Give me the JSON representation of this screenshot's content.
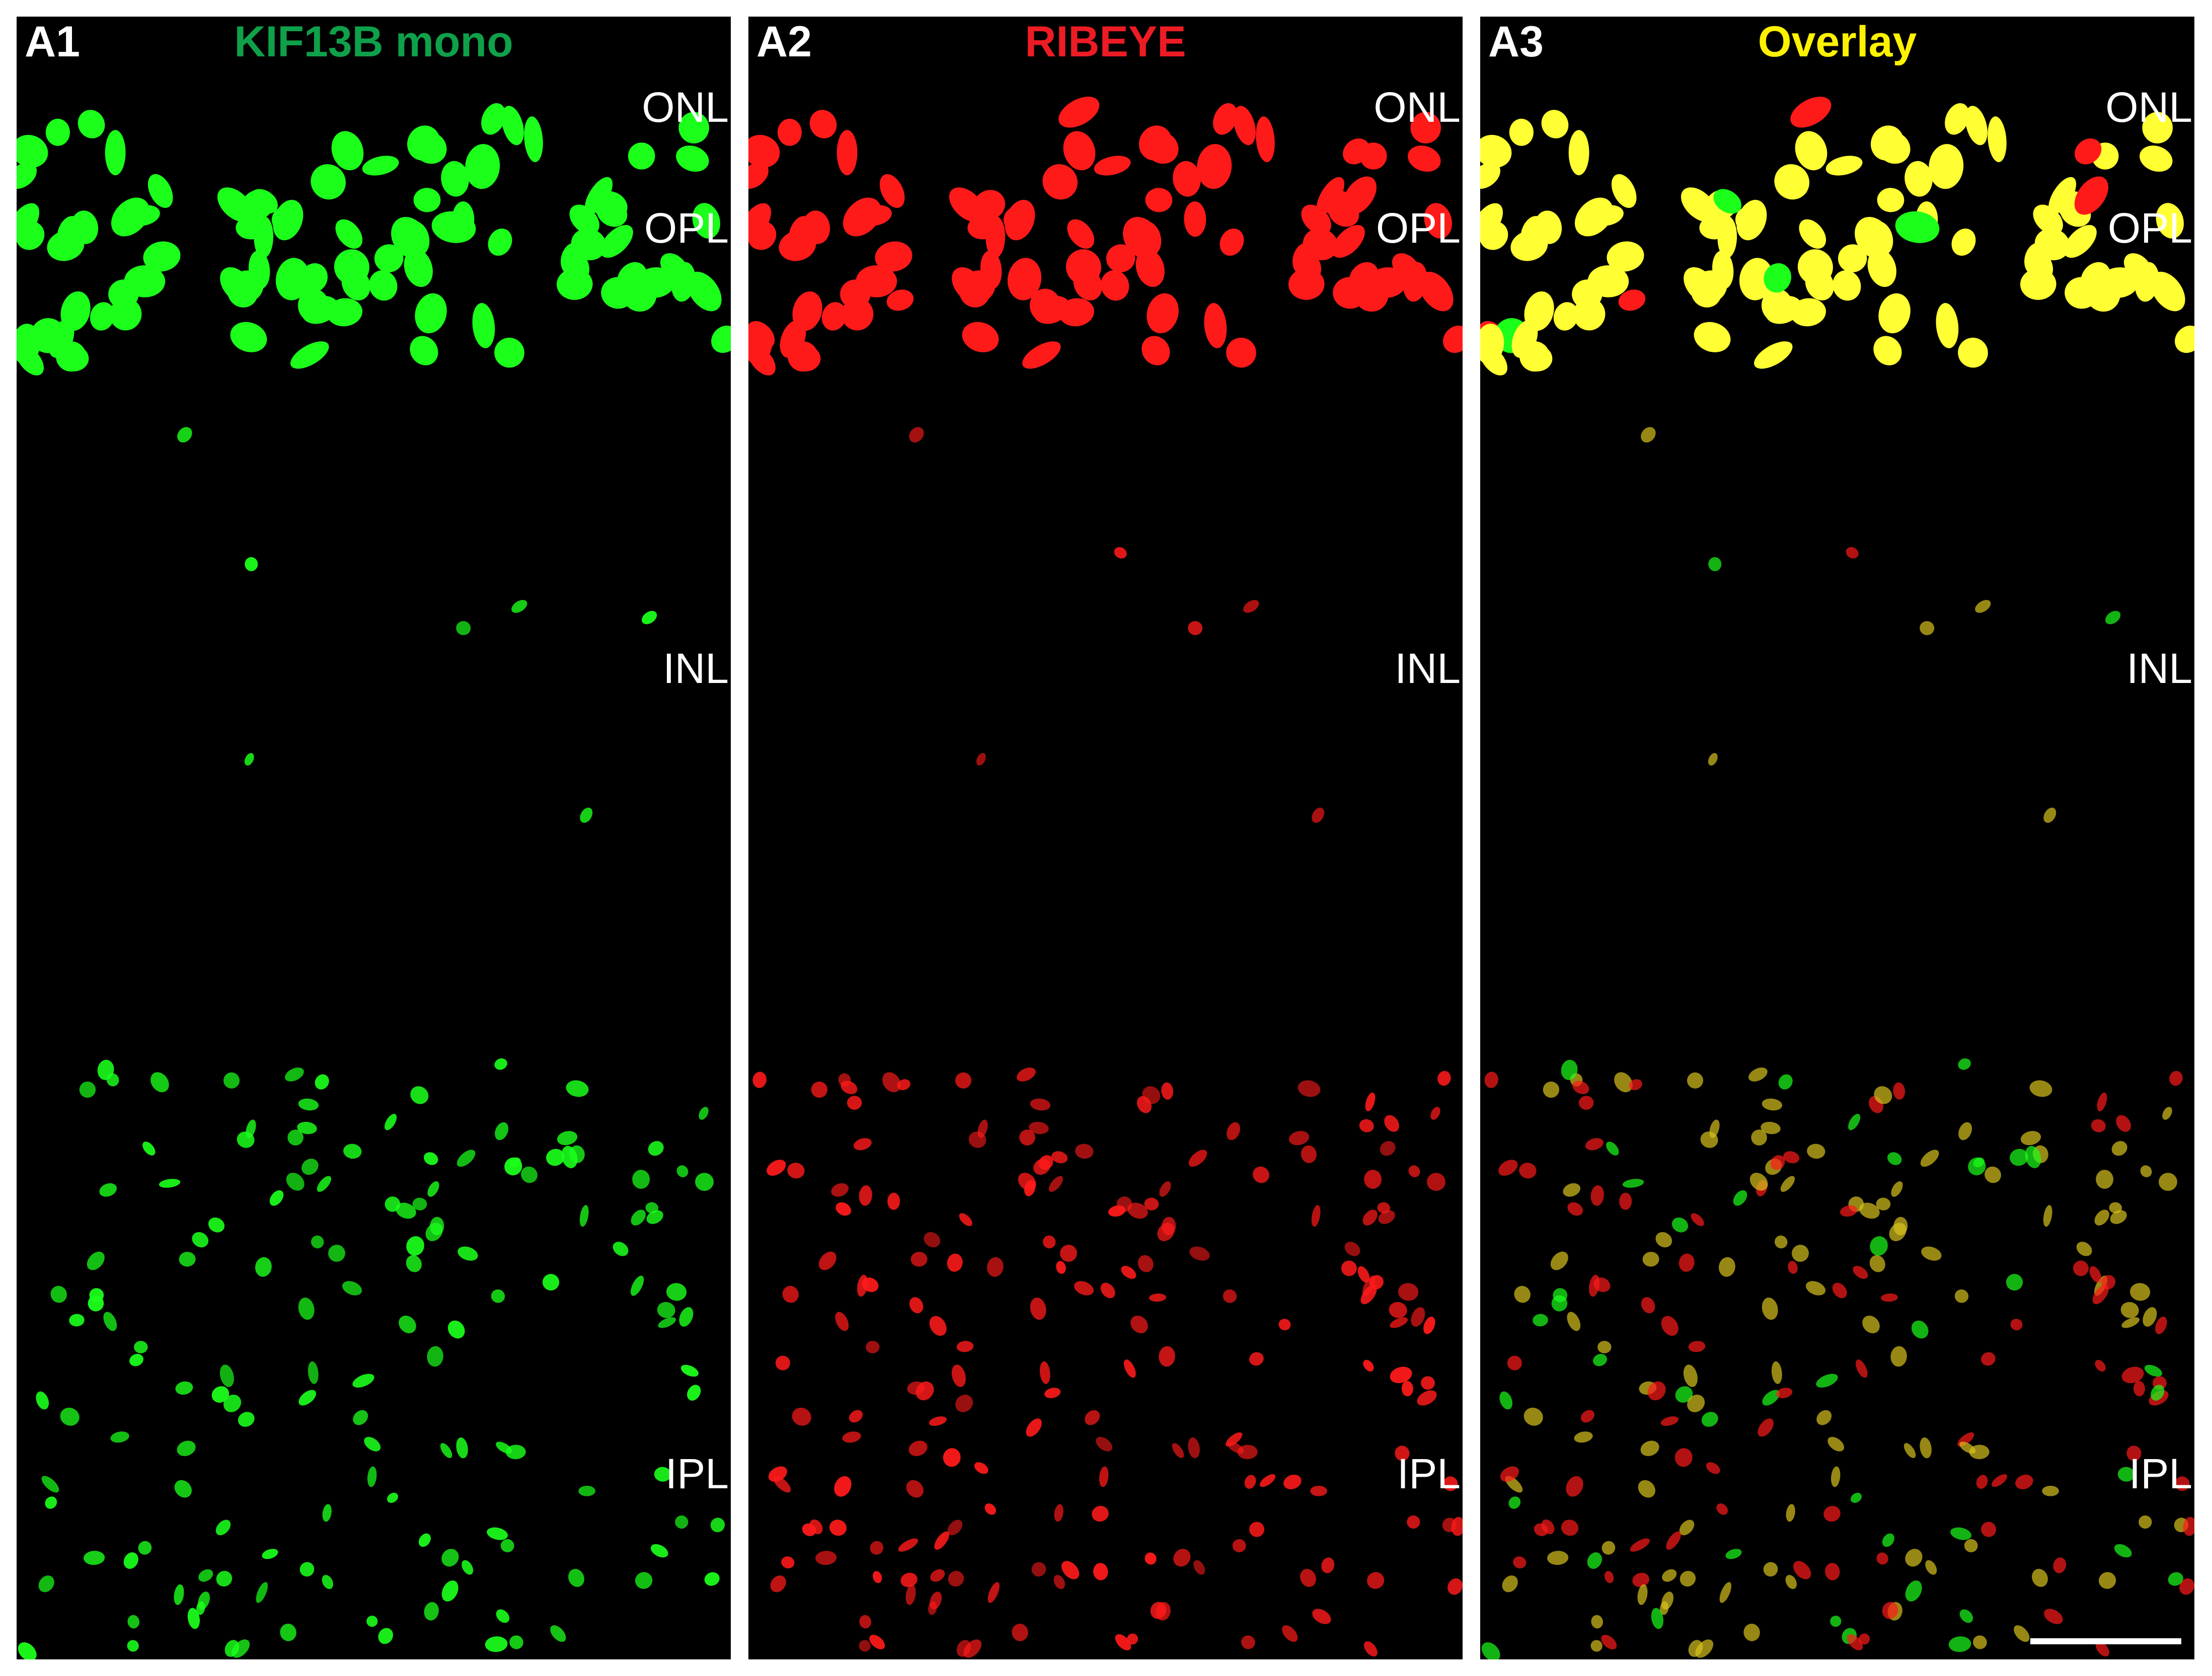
{
  "panels": [
    {
      "label": "A1",
      "title": "KIF13B mono",
      "title_color": "#0fa04a",
      "channel": "green"
    },
    {
      "label": "A2",
      "title": "RIBEYE",
      "title_color": "#ed1c24",
      "channel": "red"
    },
    {
      "label": "A3",
      "title": "Overlay",
      "title_color": "#fff200",
      "channel": "overlay"
    }
  ],
  "layers": {
    "onl": "ONL",
    "opl": "OPL",
    "inl": "INL",
    "ipl": "IPL"
  },
  "colors": {
    "background": "#000000",
    "green_signal": "#1bff1b",
    "red_signal": "#ff1a1a",
    "overlay_signal": "#ffff33",
    "text": "#ffffff"
  }
}
